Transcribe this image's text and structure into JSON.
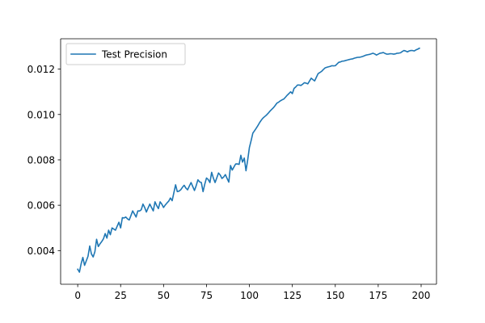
{
  "chart_data": {
    "type": "line",
    "title": "",
    "xlabel": "",
    "ylabel": "",
    "xlim": [
      -9.95,
      208.95
    ],
    "ylim": [
      0.002517,
      0.013338
    ],
    "x_ticks": [
      0,
      25,
      50,
      75,
      100,
      125,
      150,
      175,
      200
    ],
    "x_tick_labels": [
      "0",
      "25",
      "50",
      "75",
      "100",
      "125",
      "150",
      "175",
      "200"
    ],
    "y_ticks": [
      0.004,
      0.006,
      0.008,
      0.01,
      0.012
    ],
    "y_tick_labels": [
      "0.004",
      "0.006",
      "0.008",
      "0.010",
      "0.012"
    ],
    "grid": false,
    "legend": {
      "position": "top-left"
    },
    "series": [
      {
        "name": "Test Precision",
        "color": "#1f77b4",
        "anchors": [
          [
            0,
            0.00318
          ],
          [
            1,
            0.00305
          ],
          [
            2,
            0.00342
          ],
          [
            3,
            0.0037
          ],
          [
            4,
            0.00335
          ],
          [
            5,
            0.00355
          ],
          [
            6,
            0.00375
          ],
          [
            7,
            0.0042
          ],
          [
            8,
            0.00385
          ],
          [
            9,
            0.00372
          ],
          [
            10,
            0.00395
          ],
          [
            11,
            0.0045
          ],
          [
            12,
            0.00418
          ],
          [
            13,
            0.0043
          ],
          [
            14,
            0.0044
          ],
          [
            15,
            0.00452
          ],
          [
            16,
            0.00475
          ],
          [
            17,
            0.00455
          ],
          [
            18,
            0.0049
          ],
          [
            19,
            0.0047
          ],
          [
            20,
            0.005
          ],
          [
            22,
            0.0049
          ],
          [
            24,
            0.00525
          ],
          [
            25,
            0.005
          ],
          [
            26,
            0.00545
          ],
          [
            28,
            0.00548
          ],
          [
            30,
            0.00535
          ],
          [
            32,
            0.00575
          ],
          [
            34,
            0.00548
          ],
          [
            35,
            0.00575
          ],
          [
            37,
            0.0058
          ],
          [
            38,
            0.00605
          ],
          [
            40,
            0.0057
          ],
          [
            42,
            0.00605
          ],
          [
            44,
            0.00575
          ],
          [
            45,
            0.00615
          ],
          [
            47,
            0.00585
          ],
          [
            48,
            0.00615
          ],
          [
            50,
            0.0059
          ],
          [
            52,
            0.0061
          ],
          [
            54,
            0.00632
          ],
          [
            55,
            0.0062
          ],
          [
            57,
            0.0069
          ],
          [
            58,
            0.0066
          ],
          [
            60,
            0.00668
          ],
          [
            62,
            0.00688
          ],
          [
            64,
            0.00668
          ],
          [
            66,
            0.007
          ],
          [
            68,
            0.00665
          ],
          [
            70,
            0.00712
          ],
          [
            72,
            0.007
          ],
          [
            73,
            0.0066
          ],
          [
            75,
            0.0072
          ],
          [
            77,
            0.007
          ],
          [
            78,
            0.00745
          ],
          [
            80,
            0.007
          ],
          [
            82,
            0.00742
          ],
          [
            84,
            0.00718
          ],
          [
            86,
            0.00735
          ],
          [
            88,
            0.00702
          ],
          [
            89,
            0.00775
          ],
          [
            90,
            0.00755
          ],
          [
            92,
            0.00782
          ],
          [
            94,
            0.0078
          ],
          [
            95,
            0.0082
          ],
          [
            96,
            0.0079
          ],
          [
            97,
            0.00808
          ],
          [
            98,
            0.00752
          ],
          [
            99,
            0.008
          ],
          [
            100,
            0.00855
          ],
          [
            101,
            0.00885
          ],
          [
            102,
            0.00918
          ],
          [
            104,
            0.0094
          ],
          [
            106,
            0.00965
          ],
          [
            108,
            0.00985
          ],
          [
            110,
            0.00998
          ],
          [
            112,
            0.01015
          ],
          [
            114,
            0.0103
          ],
          [
            116,
            0.0105
          ],
          [
            118,
            0.0106
          ],
          [
            120,
            0.01068
          ],
          [
            122,
            0.01085
          ],
          [
            124,
            0.011
          ],
          [
            125,
            0.01092
          ],
          [
            126,
            0.01115
          ],
          [
            128,
            0.0113
          ],
          [
            130,
            0.01128
          ],
          [
            132,
            0.0114
          ],
          [
            134,
            0.01135
          ],
          [
            136,
            0.0116
          ],
          [
            138,
            0.01148
          ],
          [
            140,
            0.0118
          ],
          [
            142,
            0.0119
          ],
          [
            144,
            0.01205
          ],
          [
            146,
            0.0121
          ],
          [
            148,
            0.01215
          ],
          [
            150,
            0.01215
          ],
          [
            152,
            0.0123
          ],
          [
            154,
            0.01235
          ],
          [
            156,
            0.01238
          ],
          [
            158,
            0.01242
          ],
          [
            160,
            0.01245
          ],
          [
            162,
            0.0125
          ],
          [
            164,
            0.01252
          ],
          [
            166,
            0.01256
          ],
          [
            168,
            0.01262
          ],
          [
            170,
            0.01265
          ],
          [
            172,
            0.0127
          ],
          [
            174,
            0.01262
          ],
          [
            176,
            0.0127
          ],
          [
            178,
            0.01273
          ],
          [
            180,
            0.01266
          ],
          [
            182,
            0.01268
          ],
          [
            184,
            0.01266
          ],
          [
            186,
            0.0127
          ],
          [
            188,
            0.01272
          ],
          [
            190,
            0.01282
          ],
          [
            192,
            0.01276
          ],
          [
            194,
            0.01282
          ],
          [
            196,
            0.0128
          ],
          [
            198,
            0.01288
          ],
          [
            199,
            0.01292
          ]
        ]
      }
    ]
  }
}
